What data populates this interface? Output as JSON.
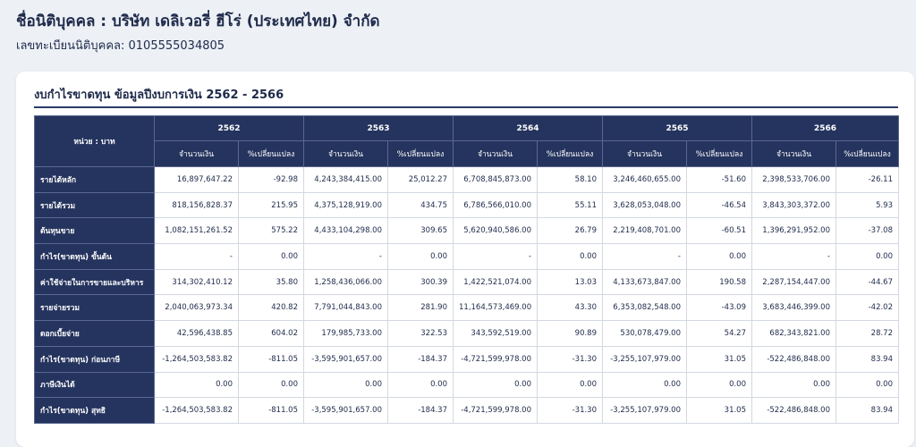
{
  "header": {
    "company_name": "ชื่อนิติบุคคล : บริษัท เดลิเวอรี่ ฮีโร่ (ประเทศไทย) จำกัด",
    "registration": "เลขทะเบียนนิติบุคคล: 0105555034805"
  },
  "card": {
    "title": "งบกำไรขาดทุน ข้อมูลปีงบการเงิน 2562 - 2566"
  },
  "table": {
    "unit_label": "หน่วย : บาท",
    "years": [
      "2562",
      "2563",
      "2564",
      "2565",
      "2566"
    ],
    "col_amount": "จำนวนเงิน",
    "col_change": "%เปลี่ยนแปลง",
    "rows": [
      {
        "label": "รายได้หลัก",
        "values": [
          "16,897,647.22",
          "-92.98",
          "4,243,384,415.00",
          "25,012.27",
          "6,708,845,873.00",
          "58.10",
          "3,246,460,655.00",
          "-51.60",
          "2,398,533,706.00",
          "-26.11"
        ]
      },
      {
        "label": "รายได้รวม",
        "values": [
          "818,156,828.37",
          "215.95",
          "4,375,128,919.00",
          "434.75",
          "6,786,566,010.00",
          "55.11",
          "3,628,053,048.00",
          "-46.54",
          "3,843,303,372.00",
          "5.93"
        ]
      },
      {
        "label": "ต้นทุนขาย",
        "values": [
          "1,082,151,261.52",
          "575.22",
          "4,433,104,298.00",
          "309.65",
          "5,620,940,586.00",
          "26.79",
          "2,219,408,701.00",
          "-60.51",
          "1,396,291,952.00",
          "-37.08"
        ]
      },
      {
        "label": "กำไร(ขาดทุน) ขั้นต้น",
        "values": [
          "-",
          "0.00",
          "-",
          "0.00",
          "-",
          "0.00",
          "-",
          "0.00",
          "-",
          "0.00"
        ]
      },
      {
        "label": "ค่าใช้จ่ายในการขายและบริหาร",
        "values": [
          "314,302,410.12",
          "35.80",
          "1,258,436,066.00",
          "300.39",
          "1,422,521,074.00",
          "13.03",
          "4,133,673,847.00",
          "190.58",
          "2,287,154,447.00",
          "-44.67"
        ]
      },
      {
        "label": "รายจ่ายรวม",
        "values": [
          "2,040,063,973.34",
          "420.82",
          "7,791,044,843.00",
          "281.90",
          "11,164,573,469.00",
          "43.30",
          "6,353,082,548.00",
          "-43.09",
          "3,683,446,399.00",
          "-42.02"
        ]
      },
      {
        "label": "ดอกเบี้ยจ่าย",
        "values": [
          "42,596,438.85",
          "604.02",
          "179,985,733.00",
          "322.53",
          "343,592,519.00",
          "90.89",
          "530,078,479.00",
          "54.27",
          "682,343,821.00",
          "28.72"
        ]
      },
      {
        "label": "กำไร(ขาดทุน) ก่อนภาษี",
        "values": [
          "-1,264,503,583.82",
          "-811.05",
          "-3,595,901,657.00",
          "-184.37",
          "-4,721,599,978.00",
          "-31.30",
          "-3,255,107,979.00",
          "31.05",
          "-522,486,848.00",
          "83.94"
        ]
      },
      {
        "label": "ภาษีเงินได้",
        "values": [
          "0.00",
          "0.00",
          "0.00",
          "0.00",
          "0.00",
          "0.00",
          "0.00",
          "0.00",
          "0.00",
          "0.00"
        ]
      },
      {
        "label": "กำไร(ขาดทุน) สุทธิ",
        "values": [
          "-1,264,503,583.82",
          "-811.05",
          "-3,595,901,657.00",
          "-184.37",
          "-4,721,599,978.00",
          "-31.30",
          "-3,255,107,979.00",
          "31.05",
          "-522,486,848.00",
          "83.94"
        ]
      }
    ]
  },
  "colors": {
    "header_bg": "#25345e",
    "page_bg": "#edf1f6",
    "text": "#1e2a4a"
  }
}
